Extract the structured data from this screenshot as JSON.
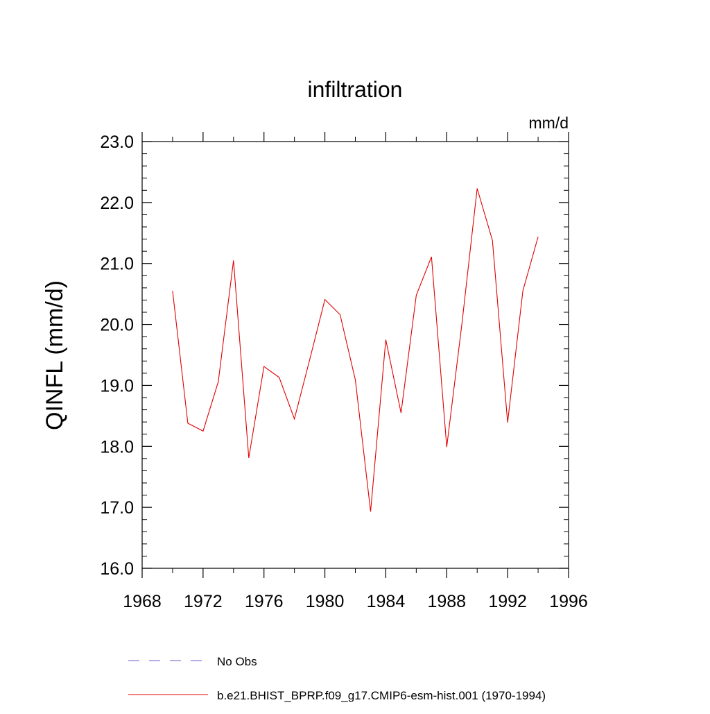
{
  "chart_data": {
    "type": "line",
    "title": "infiltration",
    "units": "mm/d",
    "xlabel": "",
    "ylabel": "QINFL  (mm/d)",
    "xlim": [
      1968,
      1996
    ],
    "ylim": [
      16.0,
      23.0
    ],
    "x_major_ticks": [
      1968,
      1972,
      1976,
      1980,
      1984,
      1988,
      1992,
      1996
    ],
    "x_tick_labels": [
      "1968",
      "1972",
      "1976",
      "1980",
      "1984",
      "1988",
      "1992",
      "1996"
    ],
    "x_minor_step": 4,
    "y_major_ticks": [
      16.0,
      17.0,
      18.0,
      19.0,
      20.0,
      21.0,
      22.0,
      23.0
    ],
    "y_tick_labels": [
      "16.0",
      "17.0",
      "18.0",
      "19.0",
      "20.0",
      "21.0",
      "22.0",
      "23.0"
    ],
    "y_minor_step": 0.2,
    "grid": false,
    "series": [
      {
        "name": "b.e21.BHIST_BPRP.f09_g17.CMIP6-esm-hist.001 (1970-1994)",
        "color": "#e00000",
        "style": "solid",
        "x": [
          1970,
          1971,
          1972,
          1973,
          1974,
          1975,
          1976,
          1977,
          1978,
          1979,
          1980,
          1981,
          1982,
          1983,
          1984,
          1985,
          1986,
          1987,
          1988,
          1989,
          1990,
          1991,
          1992,
          1993,
          1994
        ],
        "values": [
          20.55,
          18.38,
          18.25,
          19.06,
          21.05,
          17.81,
          19.31,
          19.13,
          18.45,
          19.42,
          20.41,
          20.16,
          19.09,
          16.93,
          19.75,
          18.55,
          20.48,
          21.11,
          17.99,
          20.02,
          22.23,
          21.38,
          18.39,
          20.55,
          21.44
        ]
      }
    ],
    "legend": {
      "placement": "bottom",
      "entries": [
        {
          "label": "No Obs",
          "color": "#6a5acd",
          "style": "dashed"
        },
        {
          "label": "b.e21.BHIST_BPRP.f09_g17.CMIP6-esm-hist.001 (1970-1994)",
          "color": "#e00000",
          "style": "solid"
        }
      ]
    }
  }
}
